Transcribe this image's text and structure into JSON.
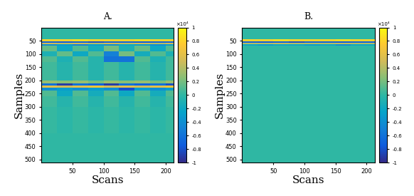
{
  "chart_data": [
    {
      "type": "heatmap",
      "title": "A.",
      "xlabel": "Scans",
      "ylabel": "Samples",
      "x_edges": [
        0,
        25,
        50,
        75,
        100,
        125,
        150,
        175,
        200,
        213
      ],
      "y_edges": [
        0,
        45,
        52,
        58,
        64,
        70,
        90,
        110,
        130,
        200,
        212,
        220,
        228,
        240,
        260,
        300,
        400,
        512
      ],
      "cells": [
        [
          0,
          0,
          0,
          0,
          0,
          0,
          0,
          0,
          0
        ],
        [
          0.8,
          0.8,
          0.85,
          0.8,
          0.8,
          0.8,
          0.85,
          0.8,
          0.8
        ],
        [
          -0.7,
          -0.75,
          -0.7,
          -0.8,
          -0.7,
          -0.7,
          -0.75,
          -0.7,
          -0.7
        ],
        [
          0.5,
          0.45,
          0.5,
          0.4,
          0.5,
          0.45,
          0.5,
          0.4,
          0.5
        ],
        [
          -0.4,
          -0.3,
          -0.5,
          -0.3,
          -0.4,
          -0.2,
          -0.3,
          -0.4,
          -0.3
        ],
        [
          0.15,
          -0.2,
          0.1,
          -0.15,
          0.2,
          -0.1,
          0.15,
          -0.2,
          0.1
        ],
        [
          -0.1,
          0.15,
          -0.2,
          0.1,
          -0.5,
          0.2,
          -0.15,
          0.1,
          -0.1
        ],
        [
          0.1,
          -0.1,
          0.1,
          -0.05,
          -0.6,
          -0.6,
          0.1,
          -0.1,
          0.05
        ],
        [
          0.05,
          -0.05,
          0.05,
          -0.05,
          0.05,
          -0.05,
          0.05,
          -0.05,
          0.05
        ],
        [
          0.3,
          0.25,
          0.3,
          0.2,
          0.3,
          0.25,
          0.3,
          0.2,
          0.3
        ],
        [
          -0.6,
          -0.9,
          -0.6,
          -0.7,
          -0.9,
          -0.6,
          -0.7,
          -0.6,
          -0.8
        ],
        [
          0.6,
          0.5,
          0.6,
          0.7,
          0.5,
          0.6,
          0.5,
          0.6,
          0.7
        ],
        [
          -0.4,
          -0.3,
          -0.4,
          -0.3,
          -0.4,
          -0.8,
          -0.3,
          -0.4,
          -0.3
        ],
        [
          0.1,
          -0.2,
          0.1,
          -0.15,
          0.1,
          -0.2,
          0.1,
          -0.15,
          0.1
        ],
        [
          0.05,
          -0.05,
          0.05,
          -0.05,
          0.05,
          -0.05,
          0.05,
          -0.05,
          0.05
        ],
        [
          0.02,
          -0.02,
          0.02,
          -0.02,
          0.02,
          -0.02,
          0.02,
          -0.02,
          0.02
        ],
        [
          0,
          0,
          0,
          0,
          0,
          0,
          0,
          0,
          0
        ]
      ],
      "xlim": [
        0,
        213
      ],
      "ylim": [
        512,
        0
      ],
      "xticks": [
        50,
        100,
        150,
        200
      ],
      "yticks": [
        50,
        100,
        150,
        200,
        250,
        300,
        350,
        400,
        450,
        500
      ],
      "colorbar_range": [
        -1,
        1
      ],
      "colorbar_ticks": [
        -1,
        -0.8,
        -0.6,
        -0.4,
        -0.2,
        0,
        0.2,
        0.4,
        0.6,
        0.8,
        1
      ],
      "colorbar_label": "×10⁴"
    },
    {
      "type": "heatmap",
      "title": "B.",
      "xlabel": "Scans",
      "ylabel": "Samples",
      "x_edges": [
        0,
        25,
        50,
        75,
        100,
        125,
        150,
        175,
        200,
        213
      ],
      "y_edges": [
        0,
        45,
        52,
        58,
        64,
        70,
        90,
        110,
        130,
        200,
        212,
        220,
        228,
        240,
        260,
        300,
        400,
        512
      ],
      "cells": [
        [
          0,
          0,
          0,
          0,
          0,
          0,
          0,
          0,
          0
        ],
        [
          0.8,
          0.8,
          0.85,
          0.8,
          0.8,
          0.8,
          0.85,
          0.8,
          0.8
        ],
        [
          -0.7,
          -0.75,
          -0.7,
          -0.8,
          -0.7,
          -0.7,
          -0.75,
          -0.7,
          -0.7
        ],
        [
          0.4,
          0.4,
          0.45,
          0.4,
          0.4,
          0.4,
          0.45,
          0.4,
          0.4
        ],
        [
          -0.2,
          -0.3,
          -0.2,
          -0.2,
          -0.3,
          -0.2,
          -0.4,
          -0.2,
          -0.2
        ],
        [
          0,
          0,
          0,
          0,
          0,
          0,
          0,
          0,
          0
        ],
        [
          0,
          0,
          0,
          0,
          0,
          0,
          0,
          0,
          0
        ],
        [
          0,
          0,
          0,
          0,
          0,
          0,
          0,
          0,
          0
        ],
        [
          0,
          0,
          0,
          0,
          0,
          0,
          0,
          0,
          0
        ],
        [
          0,
          0,
          0,
          0,
          0,
          0,
          0,
          0,
          0
        ],
        [
          0,
          0,
          0,
          0,
          0,
          0,
          0,
          0,
          0
        ],
        [
          0,
          0,
          0,
          0,
          0,
          0,
          0,
          0,
          0
        ],
        [
          0,
          0,
          0,
          0,
          0,
          0,
          0,
          0,
          0
        ],
        [
          0,
          0,
          0,
          0,
          0,
          0,
          0,
          0,
          0
        ],
        [
          0,
          0,
          0,
          0,
          0,
          0,
          0,
          0,
          0
        ],
        [
          0,
          0,
          0,
          0,
          0,
          0,
          0,
          0,
          0
        ],
        [
          0,
          0,
          0,
          0,
          0,
          0,
          0,
          0,
          0
        ]
      ],
      "xlim": [
        0,
        213
      ],
      "ylim": [
        512,
        0
      ],
      "xticks": [
        50,
        100,
        150,
        200
      ],
      "yticks": [
        50,
        100,
        150,
        200,
        250,
        300,
        350,
        400,
        450,
        500
      ],
      "colorbar_range": [
        -1,
        1
      ],
      "colorbar_ticks": [
        -1,
        -0.8,
        -0.6,
        -0.4,
        -0.2,
        0,
        0.2,
        0.4,
        0.6,
        0.8,
        1
      ],
      "colorbar_label": "×10⁴"
    }
  ]
}
